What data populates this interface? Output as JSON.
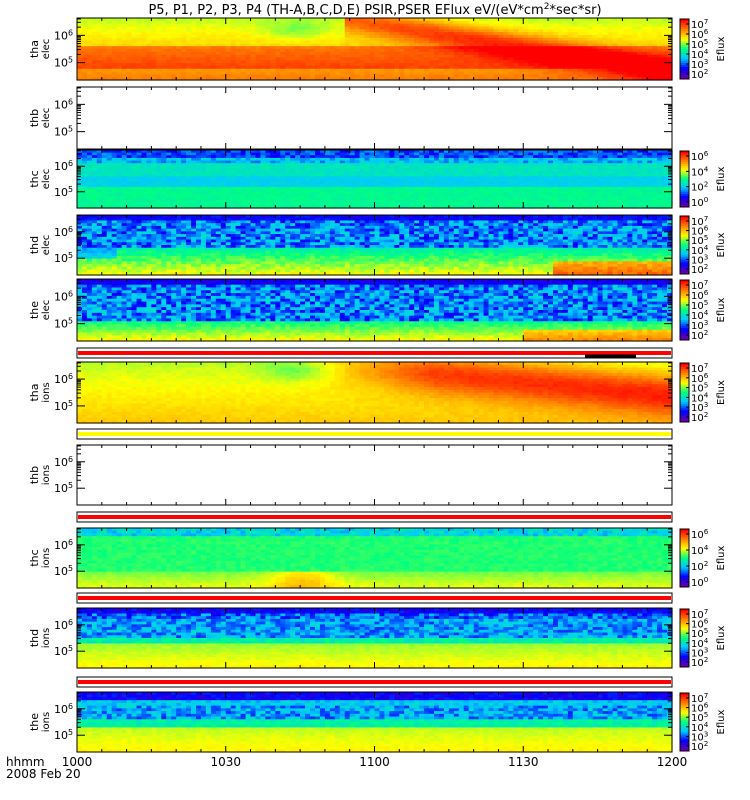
{
  "title": "P5, P1, P2, P3, P4 (TH-A,B,C,D,E) PSIR,PSER EFlux eV/(eV*cm",
  "title_sup": "2",
  "title_end": "*sec*sr)",
  "colorbar_label": "Eflux",
  "time_label": "hhmm",
  "date_label": "2008 Feb 20",
  "chart_data": {
    "type": "heatmap",
    "x_ticks": [
      "1000",
      "1030",
      "1100",
      "1130",
      "1200"
    ],
    "xlim": [
      "10:00",
      "12:00"
    ],
    "y_scale": "log",
    "panels": [
      {
        "id": "tha_elec",
        "ylabel": [
          "tha",
          "elec"
        ],
        "pattern": "tha_e",
        "empty": false,
        "y_ticks": [
          "10^6",
          "10^5"
        ],
        "cbar": [
          "10^7",
          "10^6",
          "10^5",
          "10^4",
          "10^3",
          "10^2"
        ]
      },
      {
        "id": "thb_elec",
        "ylabel": [
          "thb",
          "elec"
        ],
        "pattern": "none",
        "empty": true,
        "y_ticks": [
          "10^6",
          "10^5"
        ],
        "cbar": []
      },
      {
        "id": "thc_elec",
        "ylabel": [
          "thc",
          "elec"
        ],
        "pattern": "thc_e",
        "empty": false,
        "y_ticks": [
          "10^6",
          "10^5"
        ],
        "cbar": [
          "10^6",
          "10^4",
          "10^2",
          "10^0"
        ]
      },
      {
        "id": "thd_elec",
        "ylabel": [
          "thd",
          "elec"
        ],
        "pattern": "thd_e",
        "empty": false,
        "y_ticks": [
          "10^6",
          "10^5"
        ],
        "cbar": [
          "10^7",
          "10^6",
          "10^5",
          "10^4",
          "10^3",
          "10^2"
        ]
      },
      {
        "id": "the_elec",
        "ylabel": [
          "the",
          "elec"
        ],
        "pattern": "the_e",
        "empty": false,
        "y_ticks": [
          "10^6",
          "10^5"
        ],
        "cbar": [
          "10^7",
          "10^6",
          "10^5",
          "10^4",
          "10^3",
          "10^2"
        ]
      },
      {
        "id": "tha_ions",
        "ylabel": [
          "tha",
          "ions"
        ],
        "pattern": "tha_i",
        "empty": false,
        "y_ticks": [
          "10^6",
          "10^5"
        ],
        "cbar": [
          "10^7",
          "10^6",
          "10^5",
          "10^4",
          "10^3",
          "10^2"
        ]
      },
      {
        "id": "thb_ions",
        "ylabel": [
          "thb",
          "ions"
        ],
        "pattern": "none",
        "empty": true,
        "y_ticks": [
          "10^6",
          "10^5"
        ],
        "cbar": []
      },
      {
        "id": "thc_ions",
        "ylabel": [
          "thc",
          "ions"
        ],
        "pattern": "thc_i",
        "empty": false,
        "y_ticks": [
          "10^6",
          "10^5"
        ],
        "cbar": [
          "10^6",
          "10^4",
          "10^2",
          "10^0"
        ]
      },
      {
        "id": "thd_ions",
        "ylabel": [
          "thd",
          "ions"
        ],
        "pattern": "thd_i",
        "empty": false,
        "y_ticks": [
          "10^6",
          "10^5"
        ],
        "cbar": [
          "10^7",
          "10^6",
          "10^5",
          "10^4",
          "10^3",
          "10^2"
        ]
      },
      {
        "id": "the_ions",
        "ylabel": [
          "the",
          "ions"
        ],
        "pattern": "the_i",
        "empty": false,
        "y_ticks": [
          "10^6",
          "10^5"
        ],
        "cbar": [
          "10^7",
          "10^6",
          "10^5",
          "10^4",
          "10^3",
          "10^2"
        ]
      }
    ],
    "flag_bars": [
      {
        "after_panel": 4,
        "color": "#ff0000"
      },
      {
        "after_panel": 5,
        "color": "#ffff00"
      },
      {
        "after_panel": 6,
        "color": "#ff0000"
      },
      {
        "after_panel": 7,
        "color": "#ff0000"
      },
      {
        "after_panel": 8,
        "color": "#ff0000"
      }
    ],
    "colormap": [
      "#6a00a8",
      "#0000ff",
      "#00c8ff",
      "#00ff80",
      "#ffff00",
      "#ff8000",
      "#ff0000"
    ]
  }
}
